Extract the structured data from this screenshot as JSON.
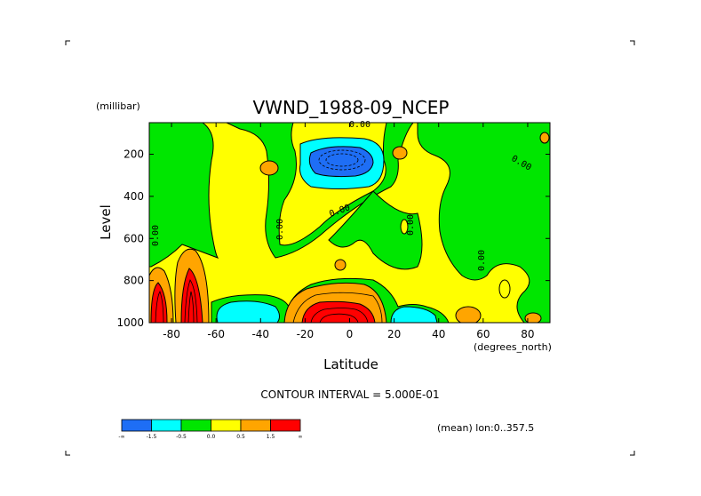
{
  "chart_data": {
    "type": "contour",
    "title": "VWND_1988-09_NCEP",
    "xlabel": "Latitude",
    "x_unit": "(degrees_north)",
    "ylabel": "Level",
    "y_unit": "(millibar)",
    "xlim": [
      -90,
      90
    ],
    "ylim": [
      1000,
      50
    ],
    "x_ticks": [
      {
        "value": -80,
        "label": "-80"
      },
      {
        "value": -60,
        "label": "-60"
      },
      {
        "value": -40,
        "label": "-40"
      },
      {
        "value": -20,
        "label": "-20"
      },
      {
        "value": 0,
        "label": "0"
      },
      {
        "value": 20,
        "label": "20"
      },
      {
        "value": 40,
        "label": "40"
      },
      {
        "value": 60,
        "label": "60"
      },
      {
        "value": 80,
        "label": "80"
      }
    ],
    "y_ticks": [
      {
        "value": 200,
        "label": "200"
      },
      {
        "value": 400,
        "label": "400"
      },
      {
        "value": 600,
        "label": "600"
      },
      {
        "value": 800,
        "label": "800"
      },
      {
        "value": 1000,
        "label": "1000"
      }
    ],
    "contour_interval_text": "CONTOUR INTERVAL = 5.000E-01",
    "footer_text": "(mean) lon:0..357.5",
    "contour_labels": [
      "0.00",
      "0.00",
      "0.00",
      "0.00",
      "0.00",
      "0.00",
      "0.00"
    ],
    "colorbar": {
      "colors": [
        "#1e6ef5",
        "#00ffff",
        "#00e600",
        "#ffff00",
        "#ffa500",
        "#ff0000"
      ],
      "tick_labels": [
        "-∞",
        "-1.5",
        "-0.5",
        "0.0",
        "0.5",
        "1.5",
        "∞"
      ]
    },
    "regions": [
      {
        "level": "0.0 to 0.5",
        "color": "#ffff00",
        "desc": "background positive wind"
      },
      {
        "level": "-0.5 to 0.0",
        "color": "#00e600",
        "desc": "negative bands"
      },
      {
        "level": "< -1.5",
        "color": "#1e6ef5",
        "desc": "upper core near -10N 180mb"
      },
      {
        "level": "> 1.5",
        "color": "#ff0000",
        "desc": "surface cores near -85N, -75N, -10N"
      }
    ]
  }
}
